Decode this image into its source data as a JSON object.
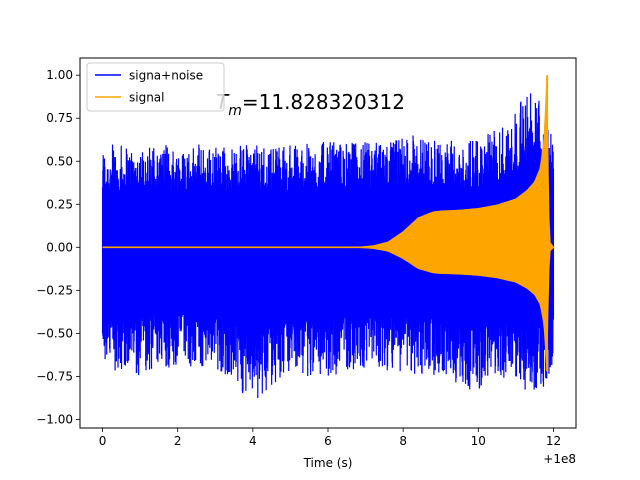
{
  "chart_data": {
    "type": "line",
    "title": "",
    "xlabel": "Time (s)",
    "ylabel": "",
    "x_offset_label": "+1e8",
    "annotation": {
      "base": "T",
      "sub": "m",
      "rest": "=11.828320312"
    },
    "xlim": [
      -0.6,
      12.6
    ],
    "ylim": [
      -1.05,
      1.1
    ],
    "x_ticks": [
      0,
      2,
      4,
      6,
      8,
      10,
      12
    ],
    "x_tick_labels": [
      "0",
      "2",
      "4",
      "6",
      "8",
      "10",
      "12"
    ],
    "y_ticks": [
      -1.0,
      -0.75,
      -0.5,
      -0.25,
      0.0,
      0.25,
      0.5,
      0.75,
      1.0
    ],
    "y_tick_labels": [
      "−1.00",
      "−0.75",
      "−0.50",
      "−0.25",
      "0.00",
      "0.25",
      "0.50",
      "0.75",
      "1.00"
    ],
    "grid": false,
    "legend_position": "upper-left",
    "series": [
      {
        "name": "signa+noise",
        "color": "#0000ff",
        "x_range": [
          0,
          12
        ],
        "upper_envelope": {
          "x": [
            0,
            1,
            2,
            3,
            4,
            5,
            6,
            7,
            7.5,
            8,
            8.5,
            9,
            9.5,
            10,
            10.5,
            11,
            11.5,
            11.8,
            12
          ],
          "y": [
            0.6,
            0.6,
            0.6,
            0.6,
            0.6,
            0.6,
            0.62,
            0.62,
            0.62,
            0.65,
            0.66,
            0.62,
            0.62,
            0.62,
            0.7,
            0.8,
            1.0,
            0.8,
            0.65
          ]
        },
        "lower_envelope": {
          "x": [
            0,
            1,
            2,
            3,
            4,
            5,
            6,
            7,
            7.5,
            8,
            8.5,
            9,
            9.5,
            10,
            10.5,
            11,
            11.5,
            11.8,
            12
          ],
          "y": [
            -0.7,
            -0.75,
            -0.7,
            -0.72,
            -0.9,
            -0.75,
            -0.75,
            -0.7,
            -0.72,
            -0.72,
            -0.75,
            -0.75,
            -0.8,
            -0.85,
            -0.75,
            -0.82,
            -0.85,
            -0.8,
            -0.75
          ]
        }
      },
      {
        "name": "signal",
        "color": "#ffa500",
        "envelope": {
          "x": [
            0,
            6.8,
            7.2,
            7.6,
            8.0,
            8.4,
            8.8,
            9.0,
            9.5,
            10.0,
            10.5,
            11.0,
            11.3,
            11.5,
            11.65,
            11.75,
            11.8,
            11.83,
            11.86,
            11.9,
            12
          ],
          "y": [
            0,
            0.0,
            0.008,
            0.03,
            0.09,
            0.17,
            0.205,
            0.21,
            0.215,
            0.225,
            0.245,
            0.28,
            0.33,
            0.38,
            0.46,
            0.62,
            0.85,
            1.0,
            0.3,
            0.03,
            0.0
          ]
        }
      }
    ]
  }
}
